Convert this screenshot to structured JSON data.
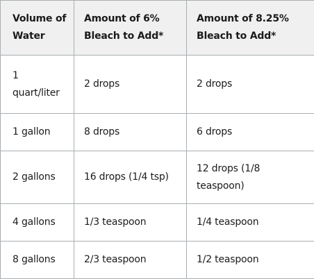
{
  "table": {
    "headers": [
      "Volume of Water",
      "Amount of 6% Bleach to Add*",
      "Amount of 8.25% Bleach to Add*"
    ],
    "rows": [
      [
        "1 quart/liter",
        "2 drops",
        "2 drops"
      ],
      [
        "1 gallon",
        "8 drops",
        "6 drops"
      ],
      [
        "2 gallons",
        "16 drops (1/4 tsp)",
        "12 drops (1/8 teaspoon)"
      ],
      [
        "4 gallons",
        "1/3 teaspoon",
        "1/4 teaspoon"
      ],
      [
        "8 gallons",
        "2/3 teaspoon",
        "1/2 teaspoon"
      ]
    ]
  },
  "colors": {
    "header_background": "#f0f0f0",
    "border": "#a9aeb1",
    "text": "#1b1b1b"
  }
}
